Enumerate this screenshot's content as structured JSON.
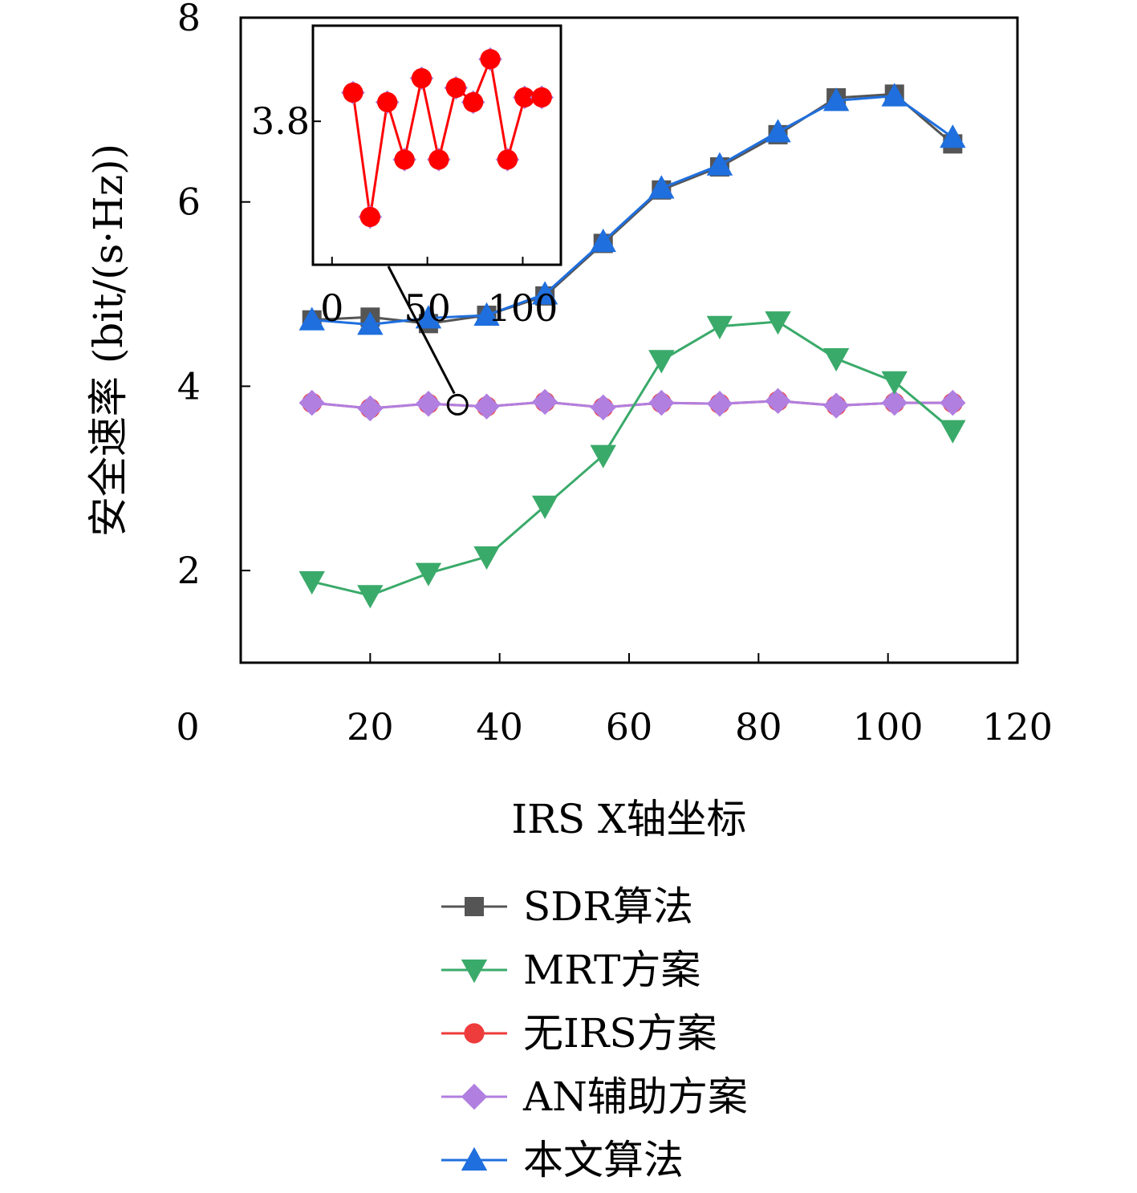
{
  "chart_data": {
    "type": "line",
    "title": "",
    "xlabel": "IRS X轴坐标",
    "ylabel": "安全速率 (bit/(s·Hz))",
    "xlim": [
      0,
      120
    ],
    "ylim": [
      1,
      8
    ],
    "xticks": [
      0,
      20,
      40,
      60,
      80,
      100,
      120
    ],
    "yticks": [
      2,
      4,
      6,
      8
    ],
    "grid": false,
    "legend_position": "bottom",
    "x": [
      11,
      20,
      29,
      38,
      47,
      56,
      65,
      74,
      83,
      92,
      101,
      110
    ],
    "series": [
      {
        "name": "SDR算法",
        "color": "#555555",
        "marker": "square",
        "values": [
          4.72,
          4.75,
          4.68,
          4.77,
          4.98,
          5.55,
          6.13,
          6.38,
          6.73,
          7.13,
          7.17,
          6.63
        ]
      },
      {
        "name": "MRT方案",
        "color": "#3aaa6a",
        "marker": "triangle-down",
        "values": [
          1.88,
          1.73,
          1.97,
          2.15,
          2.7,
          3.25,
          4.28,
          4.65,
          4.7,
          4.3,
          4.05,
          3.52
        ]
      },
      {
        "name": "无IRS方案",
        "color": "#ee3b3b",
        "marker": "circle",
        "values": [
          3.82,
          3.76,
          3.81,
          3.78,
          3.83,
          3.77,
          3.82,
          3.81,
          3.84,
          3.79,
          3.82,
          3.82
        ]
      },
      {
        "name": "AN辅助方案",
        "color": "#b07fe0",
        "marker": "diamond",
        "values": [
          3.82,
          3.76,
          3.81,
          3.78,
          3.83,
          3.77,
          3.82,
          3.81,
          3.84,
          3.79,
          3.82,
          3.82
        ]
      },
      {
        "name": "本文算法",
        "color": "#1f6fde",
        "marker": "triangle-up",
        "values": [
          4.72,
          4.67,
          4.74,
          4.77,
          5.0,
          5.57,
          6.15,
          6.4,
          6.76,
          7.1,
          7.15,
          6.7
        ]
      }
    ],
    "inset": {
      "xticks": [
        0,
        50,
        100
      ],
      "yticks": [
        3.8
      ],
      "xlim": [
        -10,
        120
      ],
      "ylim": [
        3.5,
        4.0
      ],
      "color": "#ff0000",
      "x": [
        11,
        20,
        29,
        38,
        47,
        56,
        65,
        74,
        83,
        92,
        101,
        110
      ],
      "values": [
        3.86,
        3.6,
        3.84,
        3.72,
        3.89,
        3.72,
        3.87,
        3.84,
        3.93,
        3.72,
        3.85,
        3.85
      ]
    }
  }
}
